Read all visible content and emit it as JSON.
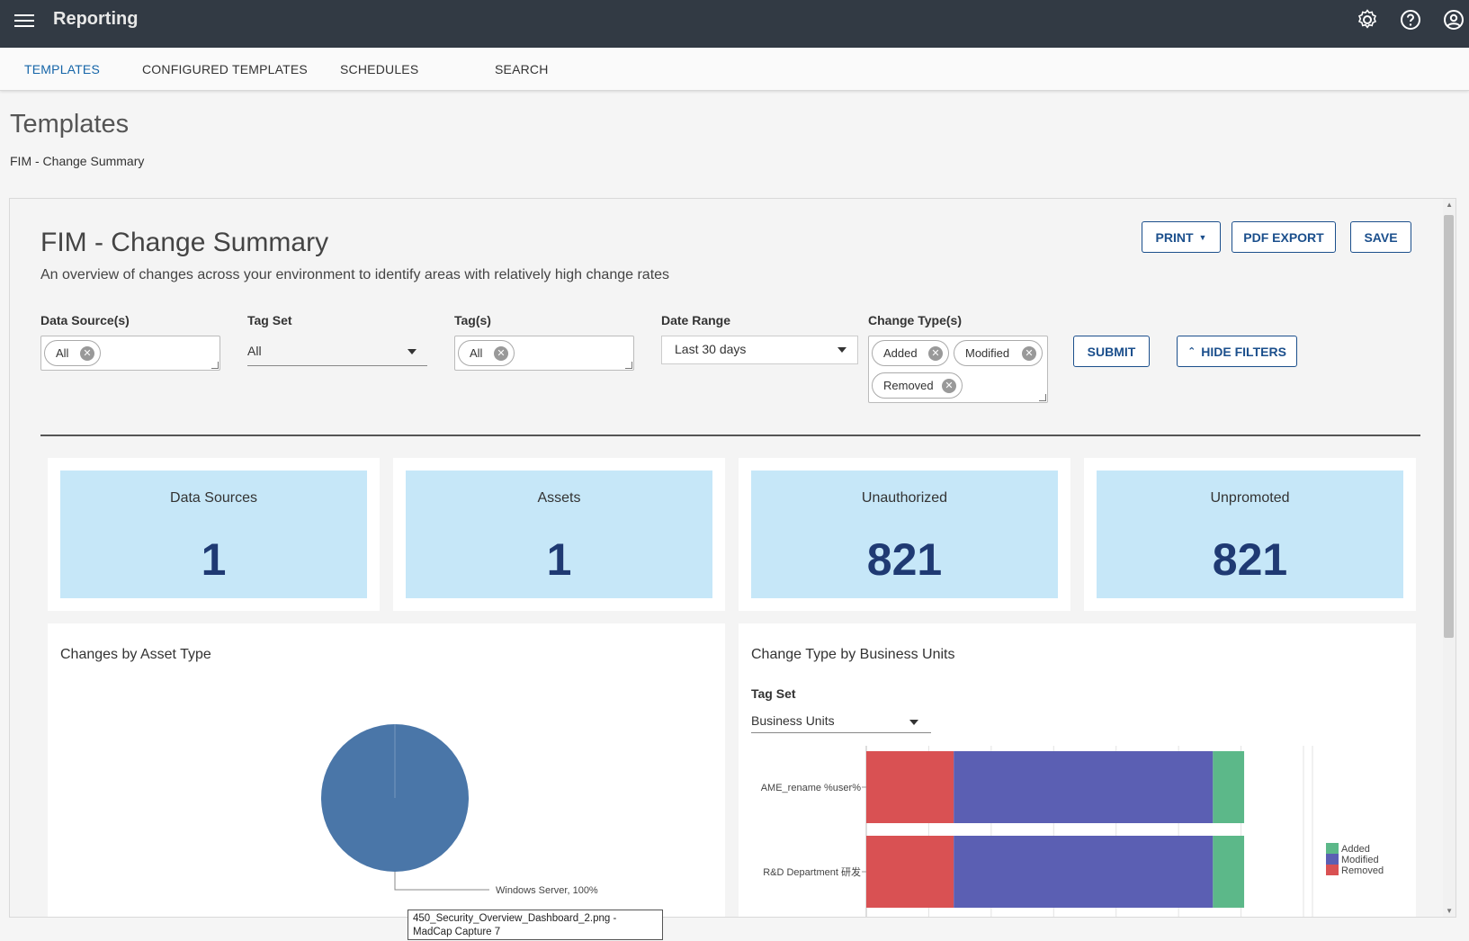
{
  "app": {
    "title": "Reporting"
  },
  "icons": {
    "menu": "menu-icon",
    "settings": "gear-icon",
    "help": "help-icon",
    "account": "account-icon"
  },
  "tabs": [
    {
      "label": "TEMPLATES",
      "active": true
    },
    {
      "label": "CONFIGURED TEMPLATES"
    },
    {
      "label": "SCHEDULES"
    },
    {
      "label": "SEARCH"
    }
  ],
  "page": {
    "title": "Templates",
    "breadcrumb": "FIM - Change Summary"
  },
  "report": {
    "title": "FIM - Change Summary",
    "description": "An overview of changes across your environment to identify areas with relatively high change rates",
    "buttons": {
      "print": "PRINT",
      "pdf_export": "PDF EXPORT",
      "save": "SAVE",
      "submit": "SUBMIT",
      "hide_filters": "HIDE FILTERS"
    },
    "filters": {
      "data_sources": {
        "label": "Data Source(s)",
        "chips": [
          "All"
        ]
      },
      "tag_set": {
        "label": "Tag Set",
        "value": "All"
      },
      "tags": {
        "label": "Tag(s)",
        "chips": [
          "All"
        ]
      },
      "date_range": {
        "label": "Date Range",
        "value": "Last 30 days"
      },
      "change_types": {
        "label": "Change Type(s)",
        "chips": [
          "Added",
          "Modified",
          "Removed"
        ]
      }
    },
    "kpis": [
      {
        "label": "Data Sources",
        "value": "1"
      },
      {
        "label": "Assets",
        "value": "1"
      },
      {
        "label": "Unauthorized",
        "value": "821"
      },
      {
        "label": "Unpromoted",
        "value": "821"
      }
    ],
    "asset_card": {
      "title": "Changes by Asset Type"
    },
    "bu_card": {
      "title": "Change Type by Business Units",
      "tag_set_label": "Tag Set",
      "tag_set_value": "Business Units"
    }
  },
  "chart_data": [
    {
      "type": "pie",
      "title": "Changes by Asset Type",
      "slices": [
        {
          "label": "Windows Server",
          "value": 100,
          "display": "Windows Server, 100%",
          "color": "#4a76a8"
        }
      ]
    },
    {
      "type": "bar",
      "orientation": "horizontal",
      "stacked": true,
      "title": "Change Type by Business Units",
      "categories": [
        "AME_rename %user%",
        "R&D Department 研发"
      ],
      "series": [
        {
          "name": "Removed",
          "color": "#d95153",
          "values": [
            28,
            28
          ]
        },
        {
          "name": "Modified",
          "color": "#5b5fb3",
          "values": [
            83,
            83
          ]
        },
        {
          "name": "Added",
          "color": "#5cb889",
          "values": [
            10,
            10
          ]
        }
      ],
      "legend": [
        "Added",
        "Modified",
        "Removed"
      ],
      "xlim": [
        0,
        140
      ]
    }
  ],
  "tooltip": {
    "text": "450_Security_Overview_Dashboard_2.png - MadCap Capture 7"
  }
}
